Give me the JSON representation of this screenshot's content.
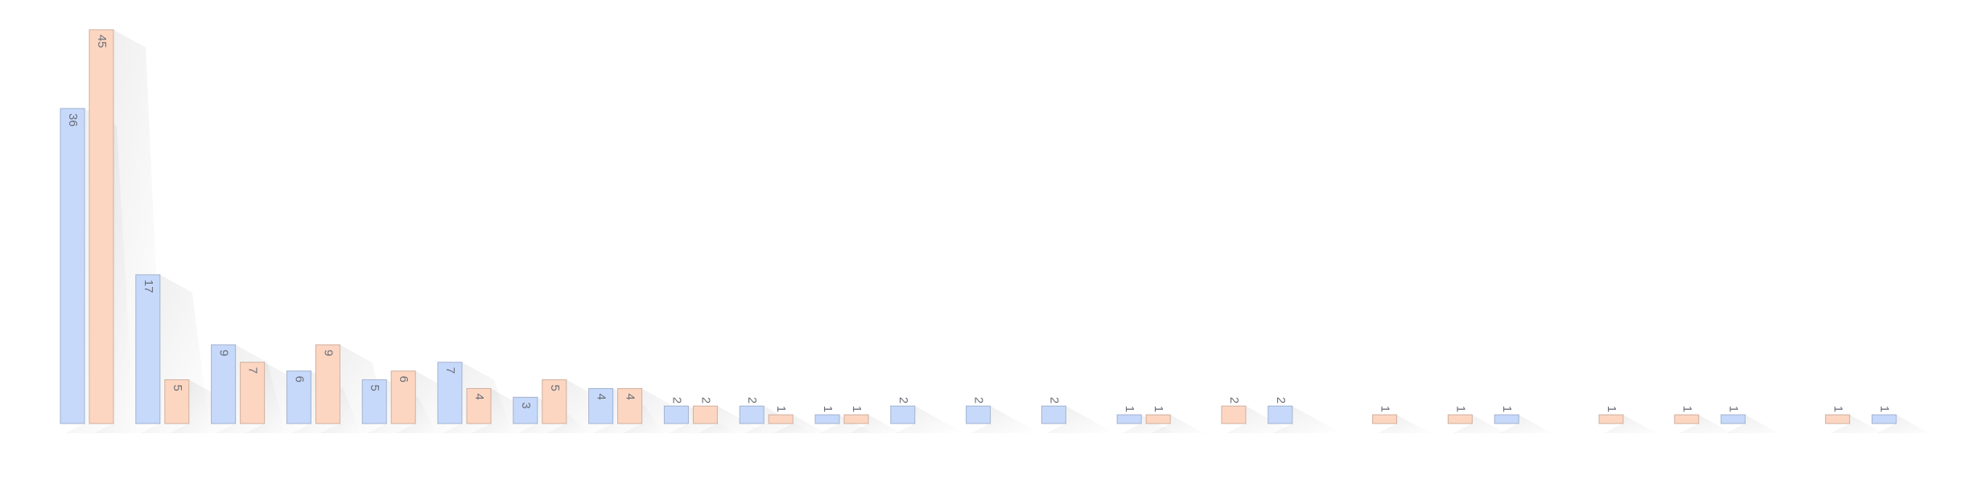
{
  "chart_data": {
    "type": "bar",
    "categories": [
      null,
      null,
      null,
      null,
      null,
      null,
      null,
      null,
      null,
      null,
      null,
      null,
      null,
      null,
      null,
      null,
      null,
      null,
      null,
      null,
      null,
      null,
      null,
      null,
      null
    ],
    "series": [
      {
        "color": "#c6d9fb",
        "values": [
          36,
          17,
          9,
          6,
          5,
          7,
          3,
          4,
          2,
          2,
          1,
          2,
          2,
          2,
          1,
          null,
          2,
          null,
          null,
          1,
          null,
          null,
          1,
          null,
          1
        ]
      },
      {
        "color": "#fdd6c2",
        "values": [
          45,
          5,
          7,
          9,
          6,
          4,
          5,
          4,
          2,
          1,
          1,
          null,
          null,
          null,
          1,
          2,
          null,
          1,
          1,
          null,
          1,
          1,
          null,
          1,
          null
        ]
      }
    ],
    "ylim": [
      0,
      45
    ]
  }
}
